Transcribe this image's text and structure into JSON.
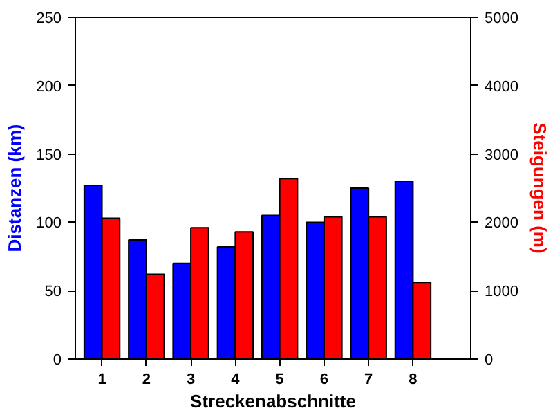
{
  "chart_data": {
    "type": "bar",
    "xlabel": "Streckenabschnitte",
    "ylabel": "Distanzen (km)",
    "y2label": "Steigungen (m)",
    "x": [
      1,
      2,
      3,
      4,
      5,
      6,
      7,
      8
    ],
    "xlim": [
      0.4,
      9.3
    ],
    "xticks": [
      1,
      2,
      3,
      4,
      5,
      6,
      7,
      8
    ],
    "ylim": [
      0,
      250
    ],
    "yticks": [
      0,
      50,
      100,
      150,
      200,
      250
    ],
    "y2lim": [
      0,
      5000
    ],
    "y2ticks": [
      0,
      1000,
      2000,
      3000,
      4000,
      5000
    ],
    "grid": false,
    "series": [
      {
        "color": "#0000ff",
        "values": [
          127,
          87,
          70,
          82,
          105,
          100,
          125,
          130
        ]
      },
      {
        "color": "#ff0000",
        "axis": "y2",
        "values": [
          2060,
          1240,
          1920,
          1860,
          2640,
          2080,
          2080,
          1120
        ]
      }
    ]
  }
}
